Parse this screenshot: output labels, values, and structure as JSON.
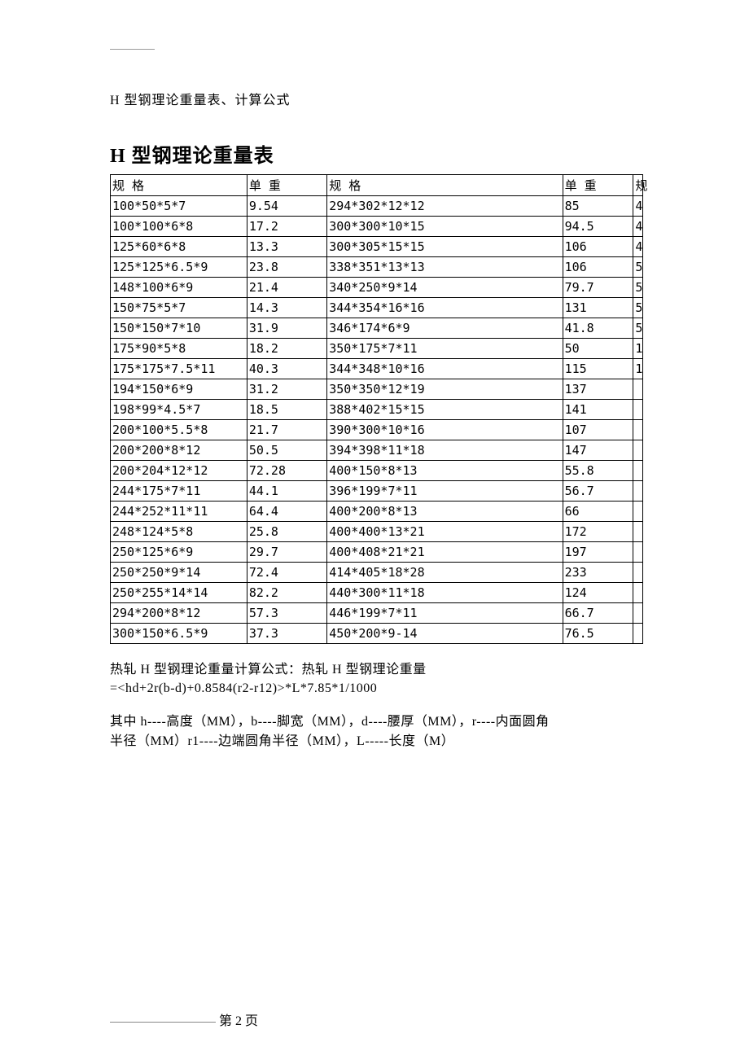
{
  "doc_subtitle": "H 型钢理论重量表、计算公式",
  "main_title": "H 型钢理论重量表",
  "table": {
    "headers": {
      "spec": "规 格",
      "wt": "单 重",
      "extra": "规"
    },
    "rows": [
      {
        "s1": "100*50*5*7",
        "w1": "9.54",
        "s2": "294*302*12*12",
        "w2": "85",
        "x": "4"
      },
      {
        "s1": "100*100*6*8",
        "w1": "17.2",
        "s2": "300*300*10*15",
        "w2": "94.5",
        "x": "4"
      },
      {
        "s1": "125*60*6*8",
        "w1": "13.3",
        "s2": "300*305*15*15",
        "w2": "106",
        "x": "4"
      },
      {
        "s1": "125*125*6.5*9",
        "w1": "23.8",
        "s2": "338*351*13*13",
        "w2": "106",
        "x": "5"
      },
      {
        "s1": "148*100*6*9",
        "w1": "21.4",
        "s2": "340*250*9*14",
        "w2": "79.7",
        "x": "5"
      },
      {
        "s1": "150*75*5*7",
        "w1": "14.3",
        "s2": "344*354*16*16",
        "w2": "131",
        "x": "5"
      },
      {
        "s1": "150*150*7*10",
        "w1": "31.9",
        "s2": "346*174*6*9",
        "w2": "41.8",
        "x": "5"
      },
      {
        "s1": "175*90*5*8",
        "w1": "18.2",
        "s2": "350*175*7*11",
        "w2": "50",
        "x": "1"
      },
      {
        "s1": "175*175*7.5*11",
        "w1": "40.3",
        "s2": "344*348*10*16",
        "w2": "115",
        "x": "1"
      },
      {
        "s1": "194*150*6*9",
        "w1": "31.2",
        "s2": "350*350*12*19",
        "w2": "137",
        "x": ""
      },
      {
        "s1": "198*99*4.5*7",
        "w1": "18.5",
        "s2": "388*402*15*15",
        "w2": "141",
        "x": ""
      },
      {
        "s1": "200*100*5.5*8",
        "w1": "21.7",
        "s2": "390*300*10*16",
        "w2": "107",
        "x": ""
      },
      {
        "s1": "200*200*8*12",
        "w1": "50.5",
        "s2": "394*398*11*18",
        "w2": "147",
        "x": ""
      },
      {
        "s1": "200*204*12*12",
        "w1": "72.28",
        "s2": "400*150*8*13",
        "w2": "55.8",
        "x": ""
      },
      {
        "s1": "244*175*7*11",
        "w1": "44.1",
        "s2": "396*199*7*11",
        "w2": "56.7",
        "x": ""
      },
      {
        "s1": "244*252*11*11",
        "w1": "64.4",
        "s2": "400*200*8*13",
        "w2": "66",
        "x": ""
      },
      {
        "s1": "248*124*5*8",
        "w1": "25.8",
        "s2": "400*400*13*21",
        "w2": "172",
        "x": ""
      },
      {
        "s1": "250*125*6*9",
        "w1": "29.7",
        "s2": "400*408*21*21",
        "w2": "197",
        "x": ""
      },
      {
        "s1": "250*250*9*14",
        "w1": "72.4",
        "s2": "414*405*18*28",
        "w2": "233",
        "x": ""
      },
      {
        "s1": "250*255*14*14",
        "w1": "82.2",
        "s2": "440*300*11*18",
        "w2": "124",
        "x": ""
      },
      {
        "s1": "294*200*8*12",
        "w1": "57.3",
        "s2": "446*199*7*11",
        "w2": "66.7",
        "x": ""
      },
      {
        "s1": "300*150*6.5*9",
        "w1": "37.3",
        "s2": "450*200*9-14",
        "w2": "76.5",
        "x": ""
      }
    ]
  },
  "formula_line1": "热轧 H 型钢理论重量计算公式：热轧 H 型钢理论重量",
  "formula_line2": "=<hd+2r(b-d)+0.8584(r2-r12)>*L*7.85*1/1000",
  "explain_line1": "其中 h----高度（MM），b----脚宽（MM），d----腰厚（MM），r----内面圆角",
  "explain_line2": "半径（MM）r1----边端圆角半径（MM），L-----长度（M）",
  "footer_text": "第 2 页"
}
